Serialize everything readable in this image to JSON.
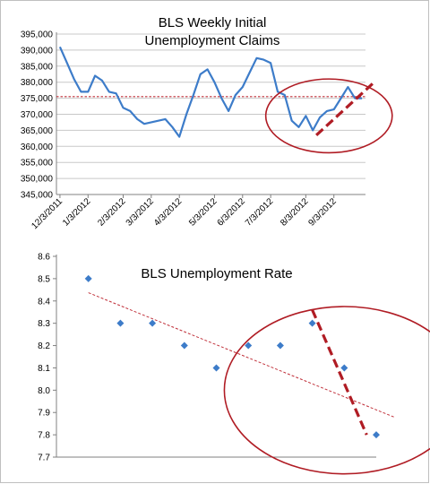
{
  "colors": {
    "series": "#3d7cc9",
    "trend": "#c0303a",
    "annotation": "#b01c24",
    "grid": "#c8c8c8",
    "axis": "#808080"
  },
  "chart_data": [
    {
      "type": "line",
      "title": [
        "BLS Weekly Initial",
        "Unemployment  Claims"
      ],
      "ylim": [
        345000,
        395000
      ],
      "yticks": [
        "345,000",
        "350,000",
        "355,000",
        "360,000",
        "365,000",
        "370,000",
        "375,000",
        "380,000",
        "385,000",
        "390,000",
        "395,000"
      ],
      "y_tick_values": [
        345000,
        350000,
        355000,
        360000,
        365000,
        370000,
        375000,
        380000,
        385000,
        390000,
        395000
      ],
      "x_tick_labels": [
        "12/3/2011",
        "1/3/2012",
        "2/3/2012",
        "3/3/2012",
        "4/3/2012",
        "5/3/2012",
        "6/3/2012",
        "7/3/2012",
        "8/3/2012",
        "9/3/2012"
      ],
      "x_tick_index": [
        0,
        4,
        9,
        13,
        17,
        22,
        26,
        30,
        35,
        39
      ],
      "x_count": 44,
      "values": [
        391000,
        386000,
        381000,
        377000,
        377000,
        382000,
        380500,
        377000,
        376500,
        372000,
        371000,
        368500,
        367000,
        367500,
        368000,
        368500,
        366000,
        363000,
        370000,
        376000,
        382500,
        384000,
        380000,
        375000,
        371000,
        376000,
        378500,
        383000,
        387500,
        387000,
        386000,
        377000,
        376000,
        368000,
        366000,
        369500,
        365000,
        369000,
        371000,
        371500,
        375000,
        378500,
        375000,
        375000
      ],
      "trend_average": 375500,
      "grid": true,
      "annotations": [
        {
          "type": "dashed-line",
          "from": [
            36.5,
            363500
          ],
          "to": [
            44.5,
            379500
          ]
        },
        {
          "type": "ellipse",
          "center": [
            38.3,
            369500
          ],
          "radius_data": [
            9.0,
            11500
          ]
        }
      ]
    },
    {
      "type": "scatter",
      "title": "BLS Unemployment  Rate",
      "ylim": [
        7.7,
        8.6
      ],
      "yticks": [
        "7.7",
        "7.8",
        "7.9",
        "8.0",
        "8.1",
        "8.2",
        "8.3",
        "8.4",
        "8.5",
        "8.6"
      ],
      "y_tick_values": [
        7.7,
        7.8,
        7.9,
        8.0,
        8.1,
        8.2,
        8.3,
        8.4,
        8.5,
        8.6
      ],
      "xlim": [
        0,
        10
      ],
      "x": [
        1,
        2,
        3,
        4,
        5,
        6,
        7,
        8,
        9,
        10
      ],
      "values": [
        8.5,
        8.3,
        8.3,
        8.2,
        8.1,
        8.2,
        8.2,
        8.3,
        8.1,
        7.8
      ],
      "trendline": {
        "from": [
          1,
          8.437
        ],
        "to": [
          10.6,
          7.877
        ]
      },
      "grid": false,
      "annotations": [
        {
          "type": "dashed-line",
          "from": [
            8.0,
            8.36
          ],
          "to": [
            9.7,
            7.8
          ]
        },
        {
          "type": "ellipse",
          "center": [
            9.0,
            8.0
          ],
          "radius_data": [
            3.75,
            0.375
          ]
        }
      ]
    }
  ]
}
